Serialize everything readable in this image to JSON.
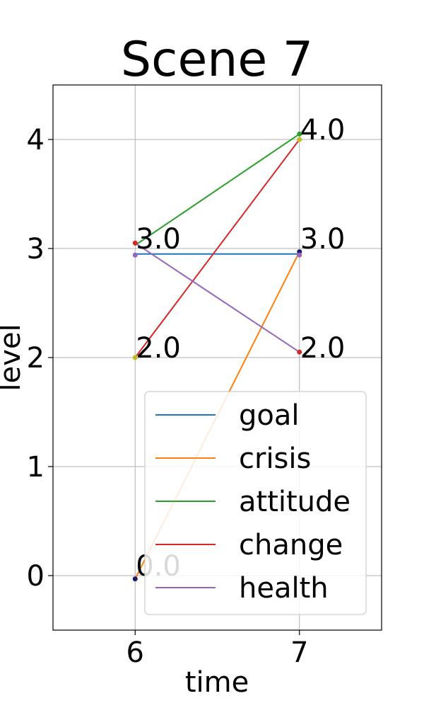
{
  "chart_data": {
    "type": "line",
    "title": "Scene 7",
    "xlabel": "time",
    "ylabel": "level",
    "x": [
      6,
      7
    ],
    "xticks": [
      "6",
      "7"
    ],
    "yticks": [
      "0",
      "1",
      "2",
      "3",
      "4"
    ],
    "xlim": [
      5.5,
      7.5
    ],
    "ylim": [
      -0.5,
      4.5
    ],
    "grid": true,
    "legend_position": "lower-right",
    "series": [
      {
        "name": "goal",
        "color": "#1f77b4",
        "values": [
          2.95,
          2.95
        ]
      },
      {
        "name": "crisis",
        "color": "#ff7f0e",
        "values": [
          -0.03,
          2.97
        ]
      },
      {
        "name": "attitude",
        "color": "#2ca02c",
        "values": [
          3.03,
          4.05
        ]
      },
      {
        "name": "change",
        "color": "#d62728",
        "values": [
          2.0,
          4.0
        ]
      },
      {
        "name": "health",
        "color": "#9467bd",
        "values": [
          3.05,
          2.05
        ]
      }
    ],
    "annotations": [
      {
        "x": 6,
        "y": 3.0,
        "text": "3.0"
      },
      {
        "x": 6,
        "y": 2.0,
        "text": "2.0"
      },
      {
        "x": 6,
        "y": 0.0,
        "text": "0.0"
      },
      {
        "x": 7,
        "y": 4.0,
        "text": "4.0"
      },
      {
        "x": 7,
        "y": 3.0,
        "text": "3.0"
      },
      {
        "x": 7,
        "y": 2.0,
        "text": "2.0"
      }
    ],
    "markers": [
      {
        "x": 6,
        "y": 3.05,
        "color": "#d62728"
      },
      {
        "x": 6,
        "y": 2.94,
        "color": "#9467bd"
      },
      {
        "x": 6,
        "y": 2.0,
        "color": "#bcbd22"
      },
      {
        "x": 6,
        "y": -0.03,
        "color": "#1a1a6e"
      },
      {
        "x": 7,
        "y": 4.05,
        "color": "#2ca02c"
      },
      {
        "x": 7,
        "y": 4.0,
        "color": "#bcbd22"
      },
      {
        "x": 7,
        "y": 2.97,
        "color": "#1a1a6e"
      },
      {
        "x": 7,
        "y": 2.94,
        "color": "#9467bd"
      },
      {
        "x": 7,
        "y": 2.05,
        "color": "#d62728"
      }
    ]
  }
}
